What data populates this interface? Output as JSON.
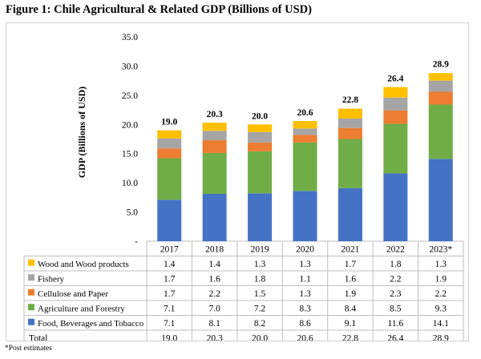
{
  "figure_title": "Figure 1: Chile Agricultural & Related GDP (Billions of USD)",
  "footnote": "*Post estimates",
  "chart_data": {
    "type": "bar",
    "stacked": true,
    "ylabel": "GDP (Billions of USD)",
    "ylim": [
      0,
      35
    ],
    "yticks": [
      "-",
      "5.0",
      "10.0",
      "15.0",
      "20.0",
      "25.0",
      "30.0",
      "35.0"
    ],
    "categories": [
      "2017",
      "2018",
      "2019",
      "2020",
      "2021",
      "2022",
      "2023*"
    ],
    "series": [
      {
        "name": "Food, Beverages and Tobacco",
        "color": "#4472c4",
        "values": [
          7.1,
          8.1,
          8.2,
          8.6,
          9.1,
          11.6,
          14.1
        ]
      },
      {
        "name": "Agriculture and Forestry",
        "color": "#70ad47",
        "values": [
          7.1,
          7.0,
          7.2,
          8.3,
          8.4,
          8.5,
          9.3
        ]
      },
      {
        "name": "Cellulose and Paper",
        "color": "#ed7d31",
        "values": [
          1.7,
          2.2,
          1.5,
          1.3,
          1.9,
          2.3,
          2.2
        ]
      },
      {
        "name": "Fishery",
        "color": "#a5a5a5",
        "values": [
          1.7,
          1.6,
          1.8,
          1.1,
          1.6,
          2.2,
          1.9
        ]
      },
      {
        "name": "Wood and Wood products",
        "color": "#ffc000",
        "values": [
          1.4,
          1.4,
          1.3,
          1.3,
          1.7,
          1.8,
          1.3
        ]
      }
    ],
    "total_label": "Total",
    "totals": [
      19.0,
      20.3,
      20.0,
      20.6,
      22.8,
      26.4,
      28.9
    ],
    "total_labels": [
      "19.0",
      "20.3",
      "20.0",
      "20.6",
      "22.8",
      "26.4",
      "28.9"
    ],
    "legend": "data-table"
  }
}
